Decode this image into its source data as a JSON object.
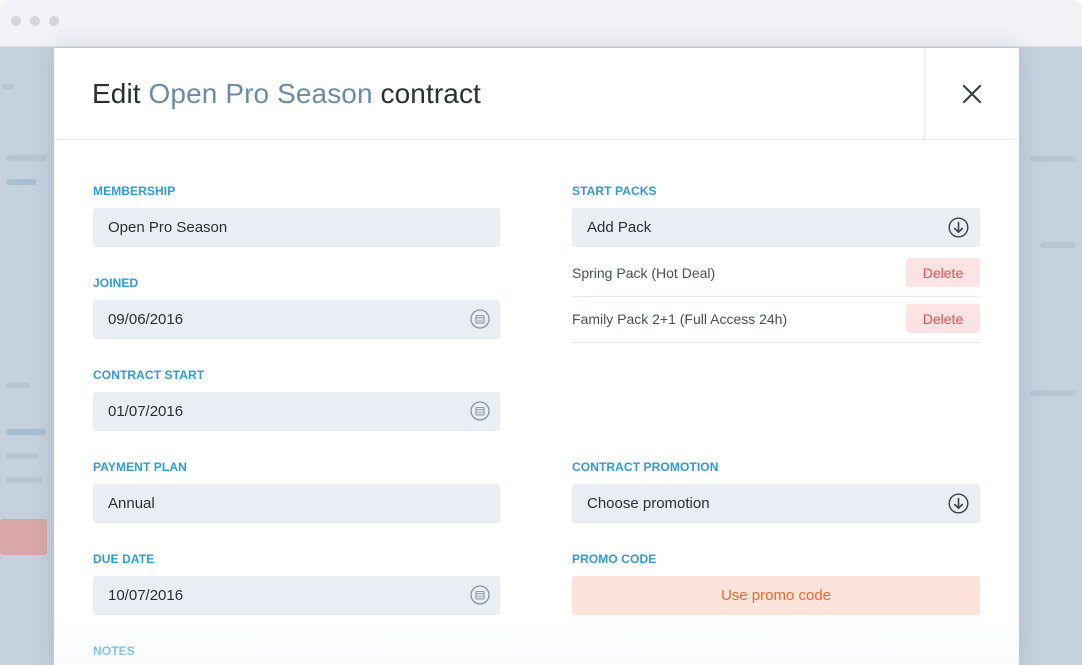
{
  "modal": {
    "title_prefix": "Edit",
    "title_highlight": "Open Pro Season",
    "title_suffix": "contract"
  },
  "membership": {
    "label": "MEMBERSHIP",
    "value": "Open Pro Season"
  },
  "joined": {
    "label": "JOINED",
    "value": "09/06/2016",
    "icon": "calendar-icon"
  },
  "contract_start": {
    "label": "CONTRACT START",
    "value": "01/07/2016",
    "icon": "calendar-icon"
  },
  "payment_plan": {
    "label": "PAYMENT PLAN",
    "value": "Annual"
  },
  "due_date": {
    "label": "DUE DATE",
    "value": "10/07/2016",
    "icon": "calendar-icon"
  },
  "notes": {
    "label": "NOTES"
  },
  "start_packs": {
    "label": "START PACKS",
    "add_label": "Add Pack",
    "icon": "arrow-down-circle-icon",
    "items": [
      {
        "name": "Spring Pack (Hot Deal)",
        "delete_label": "Delete"
      },
      {
        "name": "Family Pack 2+1 (Full Access 24h)",
        "delete_label": "Delete"
      }
    ]
  },
  "contract_promotion": {
    "label": "CONTRACT PROMOTION",
    "value": "Choose promotion",
    "icon": "arrow-down-circle-icon"
  },
  "promo_code": {
    "label": "PROMO CODE",
    "button_label": "Use promo code"
  },
  "colors": {
    "accent": "#2f9ad8",
    "title_highlight": "#6c8ca6",
    "field_bg": "#e8eef4",
    "delete_bg": "#fde3e3",
    "delete_text": "#ef4b50",
    "promo_bg": "#fde4db",
    "promo_text": "#f2652e"
  }
}
